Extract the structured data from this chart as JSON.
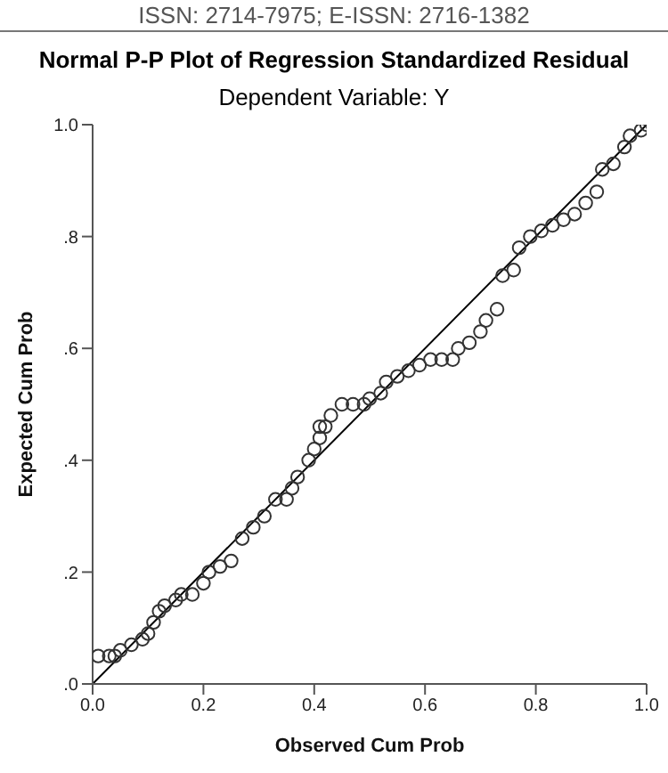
{
  "chart_data": {
    "type": "scatter",
    "title": "Normal P-P Plot of Regression Standardized Residual",
    "subtitle": "Dependent Variable: Y",
    "xlabel": "Observed Cum Prob",
    "ylabel": "Expected Cum Prob",
    "annotations": [
      "ISSN: 2714-7975; E-ISSN: 2716-1382"
    ],
    "xlim": [
      0,
      1
    ],
    "ylim": [
      0,
      1
    ],
    "xticks": [
      {
        "value": 0,
        "label": "0.0"
      },
      {
        "value": 0.2,
        "label": "0.2"
      },
      {
        "value": 0.4,
        "label": "0.4"
      },
      {
        "value": 0.6,
        "label": "0.6"
      },
      {
        "value": 0.8,
        "label": "0.8"
      },
      {
        "value": 1,
        "label": "1.0"
      }
    ],
    "yticks": [
      {
        "value": 0,
        "label": ".0"
      },
      {
        "value": 0.2,
        "label": ".2"
      },
      {
        "value": 0.4,
        "label": ".4"
      },
      {
        "value": 0.6,
        "label": ".6"
      },
      {
        "value": 0.8,
        "label": ".8"
      },
      {
        "value": 1,
        "label": "1.0"
      }
    ],
    "series": [
      {
        "color": "#333333",
        "marker": "circle",
        "x": [
          0.01,
          0.03,
          0.04,
          0.05,
          0.07,
          0.09,
          0.1,
          0.11,
          0.12,
          0.13,
          0.15,
          0.16,
          0.18,
          0.2,
          0.21,
          0.23,
          0.25,
          0.27,
          0.29,
          0.31,
          0.33,
          0.35,
          0.36,
          0.37,
          0.39,
          0.4,
          0.41,
          0.41,
          0.42,
          0.43,
          0.45,
          0.47,
          0.49,
          0.5,
          0.52,
          0.53,
          0.55,
          0.57,
          0.59,
          0.61,
          0.63,
          0.65,
          0.66,
          0.68,
          0.7,
          0.71,
          0.73,
          0.74,
          0.76,
          0.77,
          0.79,
          0.81,
          0.83,
          0.85,
          0.87,
          0.89,
          0.91,
          0.92,
          0.94,
          0.96,
          0.97,
          0.99,
          1.0
        ],
        "values": [
          0.05,
          0.05,
          0.05,
          0.06,
          0.07,
          0.08,
          0.09,
          0.11,
          0.13,
          0.14,
          0.15,
          0.16,
          0.16,
          0.18,
          0.2,
          0.21,
          0.22,
          0.26,
          0.28,
          0.3,
          0.33,
          0.33,
          0.35,
          0.37,
          0.4,
          0.42,
          0.44,
          0.46,
          0.46,
          0.48,
          0.5,
          0.5,
          0.5,
          0.51,
          0.52,
          0.54,
          0.55,
          0.56,
          0.57,
          0.58,
          0.58,
          0.58,
          0.6,
          0.61,
          0.63,
          0.65,
          0.67,
          0.73,
          0.74,
          0.78,
          0.8,
          0.81,
          0.82,
          0.83,
          0.84,
          0.86,
          0.88,
          0.92,
          0.93,
          0.96,
          0.98,
          0.99,
          1.0
        ]
      },
      {
        "type": "line",
        "color": "#000000",
        "marker": "none",
        "line_style": "solid",
        "x": [
          0,
          1
        ],
        "values": [
          0,
          1
        ]
      }
    ]
  }
}
